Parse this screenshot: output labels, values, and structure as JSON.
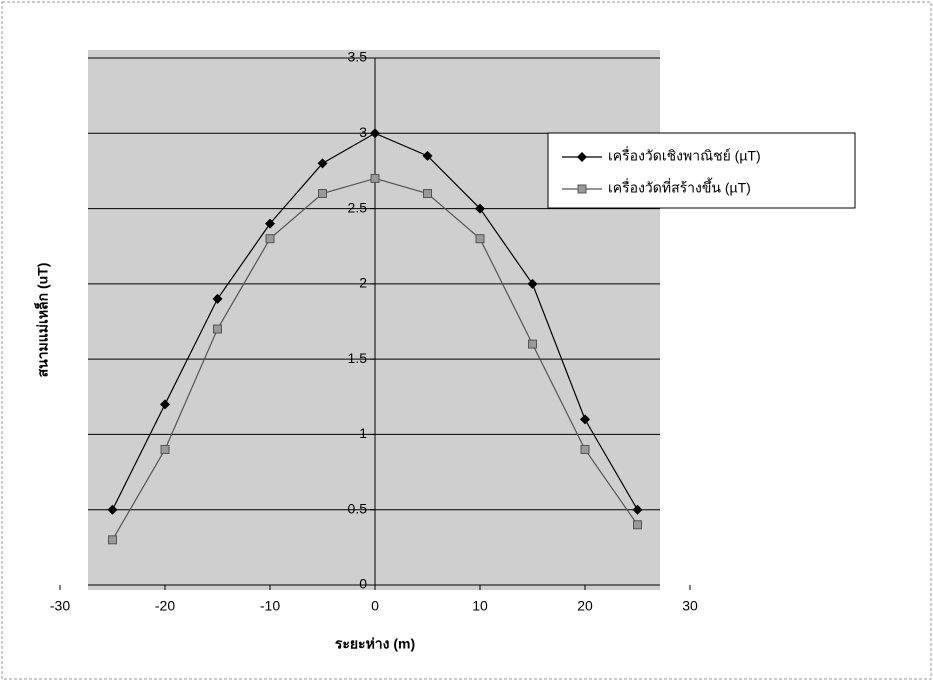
{
  "chart_data": {
    "type": "line",
    "x": [
      -25,
      -20,
      -15,
      -10,
      -5,
      0,
      5,
      10,
      15,
      20,
      25
    ],
    "series": [
      {
        "name": "เครื่องวัดเชิงพาณิชย์ (µT)",
        "color": "#000000",
        "marker": "diamond",
        "values": [
          0.5,
          1.2,
          1.9,
          2.4,
          2.8,
          3.0,
          2.85,
          2.5,
          2.0,
          1.1,
          0.5
        ]
      },
      {
        "name": "เครื่องวัดที่สร้างขึ้น  (µT)",
        "color": "#555555",
        "marker": "star",
        "values": [
          0.3,
          0.9,
          1.7,
          2.3,
          2.6,
          2.7,
          2.6,
          2.3,
          1.6,
          0.9,
          0.4
        ]
      }
    ],
    "xlabel": "ระยะห่าง (m)",
    "ylabel": "สนามแม่เหล็ก (uT)",
    "xlim": [
      -30,
      30
    ],
    "xticks": [
      -30,
      -20,
      -10,
      0,
      10,
      20,
      30
    ],
    "ylim": [
      0,
      3.5
    ],
    "yticks": [
      0,
      0.5,
      1,
      1.5,
      2,
      2.5,
      3,
      3.5
    ],
    "grid": true,
    "legend": "upper right"
  }
}
